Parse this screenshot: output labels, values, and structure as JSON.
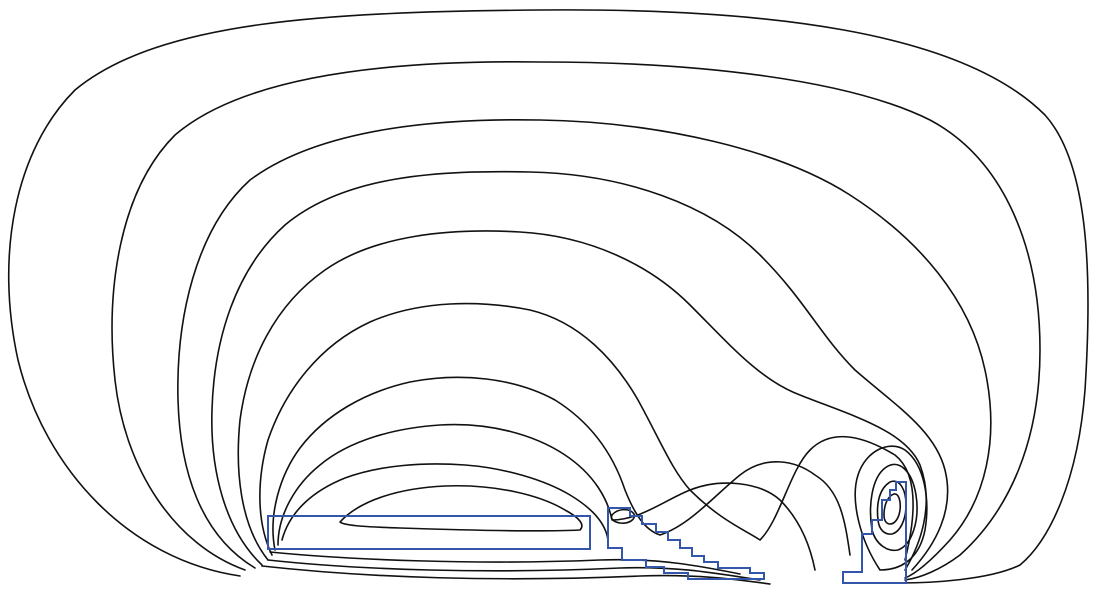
{
  "figure": {
    "contour_color": "#111111",
    "region_color": "#3355aa",
    "contour_count": 10,
    "regions": [
      "rectangle",
      "stepped",
      "column"
    ]
  }
}
